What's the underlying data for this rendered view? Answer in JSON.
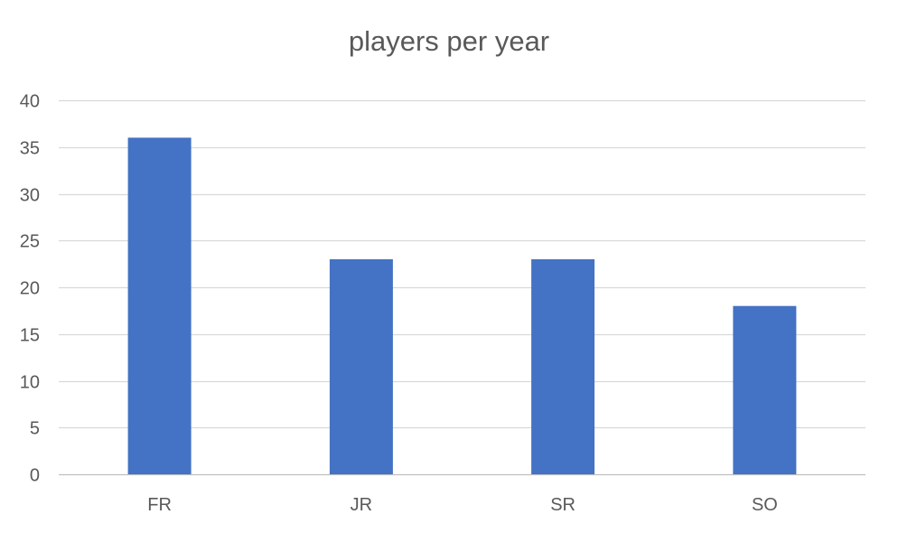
{
  "chart_data": {
    "type": "bar",
    "title": "players per year",
    "xlabel": "",
    "ylabel": "",
    "categories": [
      "FR",
      "JR",
      "SR",
      "SO"
    ],
    "values": [
      36,
      23,
      23,
      18
    ],
    "ylim": [
      0,
      40
    ],
    "yticks": [
      "0",
      "5",
      "10",
      "15",
      "20",
      "25",
      "30",
      "35",
      "40"
    ],
    "grid": true,
    "legend": "none",
    "bar_color": "#4472C4",
    "grid_color": "#D9D9D9",
    "text_color": "#595959"
  }
}
